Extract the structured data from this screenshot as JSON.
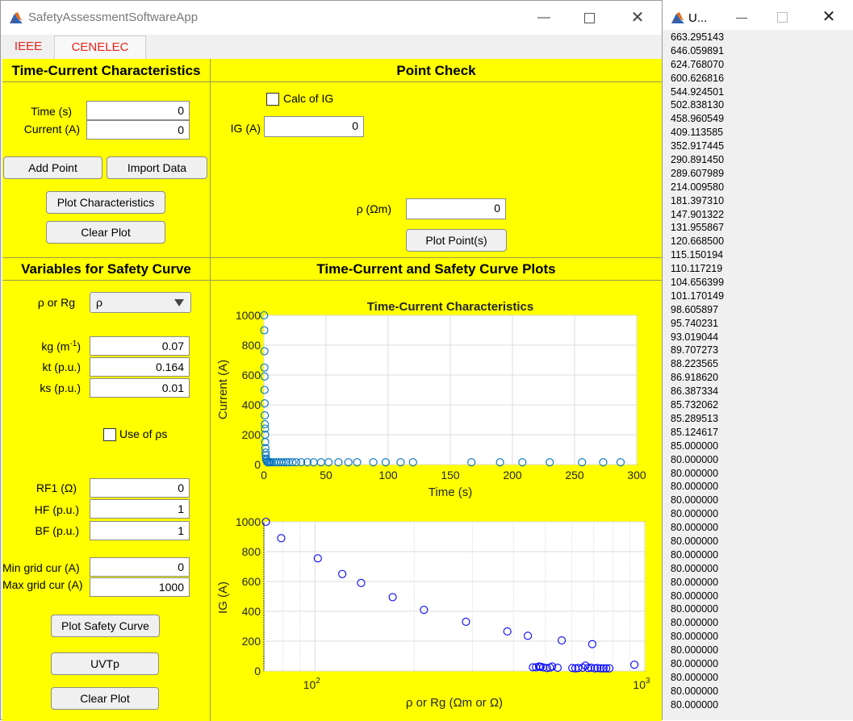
{
  "window": {
    "title": "SafetyAssessmentSoftwareApp"
  },
  "tabs": [
    {
      "label": "IEEE"
    },
    {
      "label": "CENELEC"
    }
  ],
  "time_current": {
    "title": "Time-Current Characteristics",
    "time_label": "Time (s)",
    "time_value": "0",
    "current_label": "Current (A)",
    "current_value": "0",
    "add_point": "Add Point",
    "import_data": "Import Data",
    "plot_characteristics": "Plot Characteristics",
    "clear_plot": "Clear Plot"
  },
  "point_check": {
    "title": "Point Check",
    "calc_ig_label": "Calc of IG",
    "ig_label": "IG (A)",
    "ig_value": "0",
    "rho_label": "ρ (Ωm)",
    "rho_value": "0",
    "plot_points": "Plot Point(s)"
  },
  "safety_vars": {
    "title": "Variables for Safety Curve",
    "rho_rg_label": "ρ or Rg",
    "rho_rg_selected": "ρ",
    "kg_label": "kg (m",
    "kg_sup": "-1",
    "kg_close": ")",
    "kg_value": "0.07",
    "kt_label": "kt (p.u.)",
    "kt_value": "0.164",
    "ks_label": "ks (p.u.)",
    "ks_value": "0.01",
    "use_rhos_label": "Use of ρs",
    "rf1_label": "RF1 (Ω)",
    "rf1_value": "0",
    "hf_label": "HF (p.u.)",
    "hf_value": "1",
    "bf_label": "BF (p.u.)",
    "bf_value": "1",
    "min_grid_label": "Min grid cur (A)",
    "min_grid_value": "0",
    "max_grid_label": "Max grid cur (A)",
    "max_grid_value": "1000",
    "plot_safety_curve": "Plot Safety Curve",
    "uvtp": "UVTp",
    "clear_plot": "Clear Plot"
  },
  "plots_panel": {
    "title": "Time-Current and Safety Curve Plots"
  },
  "chart_data": [
    {
      "type": "scatter",
      "title": "Time-Current Characteristics",
      "xlabel": "Time (s)",
      "ylabel": "Current (A)",
      "xlim": [
        0,
        300
      ],
      "ylim": [
        0,
        1000
      ],
      "xticks": [
        "0",
        "50",
        "100",
        "150",
        "200",
        "250",
        "300"
      ],
      "yticks": [
        "0",
        "200",
        "400",
        "600",
        "800",
        "1000"
      ],
      "grid": true,
      "marker_color": "#0072bd",
      "points": [
        [
          0.2,
          1000
        ],
        [
          0.3,
          900
        ],
        [
          0.4,
          760
        ],
        [
          0.4,
          650
        ],
        [
          0.5,
          590
        ],
        [
          0.5,
          500
        ],
        [
          0.6,
          410
        ],
        [
          0.7,
          330
        ],
        [
          0.8,
          270
        ],
        [
          0.9,
          240
        ],
        [
          1,
          200
        ],
        [
          1,
          150
        ],
        [
          1.2,
          110
        ],
        [
          1.4,
          80
        ],
        [
          1.5,
          60
        ],
        [
          1.7,
          40
        ],
        [
          2,
          30
        ],
        [
          2.5,
          20
        ],
        [
          3,
          15
        ],
        [
          4,
          15
        ],
        [
          5,
          15
        ],
        [
          6,
          15
        ],
        [
          8,
          15
        ],
        [
          10,
          15
        ],
        [
          12,
          15
        ],
        [
          14,
          15
        ],
        [
          16,
          15
        ],
        [
          18,
          15
        ],
        [
          20,
          15
        ],
        [
          23,
          15
        ],
        [
          26,
          15
        ],
        [
          30,
          15
        ],
        [
          35,
          15
        ],
        [
          40,
          15
        ],
        [
          46,
          15
        ],
        [
          52,
          15
        ],
        [
          60,
          15
        ],
        [
          68,
          15
        ],
        [
          75,
          15
        ],
        [
          88,
          15
        ],
        [
          98,
          15
        ],
        [
          110,
          15
        ],
        [
          120,
          15
        ],
        [
          167,
          15
        ],
        [
          190,
          15
        ],
        [
          208,
          15
        ],
        [
          230,
          15
        ],
        [
          256,
          15
        ],
        [
          273,
          15
        ],
        [
          287,
          15
        ]
      ]
    },
    {
      "type": "scatter",
      "title": "",
      "xlabel": "ρ or Rg (Ωm or Ω)",
      "ylabel": "IG (A)",
      "xscale": "log",
      "xlim": [
        70,
        1000
      ],
      "ylim": [
        0,
        1000
      ],
      "xticks": [
        "10^2",
        "10^3"
      ],
      "yticks": [
        "0",
        "200",
        "400",
        "600",
        "800",
        "1000"
      ],
      "grid": true,
      "marker_color": "#0000ff",
      "points": [
        [
          71,
          1000
        ],
        [
          79,
          890
        ],
        [
          102,
          755
        ],
        [
          121,
          650
        ],
        [
          138,
          590
        ],
        [
          172,
          495
        ],
        [
          214,
          410
        ],
        [
          287,
          330
        ],
        [
          383,
          265
        ],
        [
          442,
          236
        ],
        [
          458,
          25
        ],
        [
          468,
          25
        ],
        [
          478,
          30
        ],
        [
          483,
          28
        ],
        [
          492,
          24
        ],
        [
          505,
          20
        ],
        [
          516,
          23
        ],
        [
          524,
          30
        ],
        [
          544,
          22
        ],
        [
          560,
          205
        ],
        [
          603,
          20
        ],
        [
          616,
          18
        ],
        [
          628,
          20
        ],
        [
          648,
          22
        ],
        [
          661,
          36
        ],
        [
          673,
          20
        ],
        [
          687,
          22
        ],
        [
          693,
          180
        ],
        [
          705,
          18
        ],
        [
          718,
          20
        ],
        [
          735,
          18
        ],
        [
          750,
          18
        ],
        [
          764,
          18
        ],
        [
          781,
          18
        ],
        [
          930,
          42
        ]
      ]
    }
  ],
  "uvt_window": {
    "title": "U...",
    "values": [
      "663.295143",
      "646.059891",
      "624.768070",
      "600.626816",
      "544.924501",
      "502.838130",
      "458.960549",
      "409.113585",
      "352.917445",
      "290.891450",
      "289.607989",
      "214.009580",
      "181.397310",
      "147.901322",
      "131.955867",
      "120.668500",
      "115.150194",
      "110.117219",
      "104.656399",
      "101.170149",
      "98.605897",
      "95.740231",
      "93.019044",
      "89.707273",
      "88.223565",
      "86.918620",
      "86.387334",
      "85.732062",
      "85.289513",
      "85.124617",
      "85.000000",
      "80.000000",
      "80.000000",
      "80.000000",
      "80.000000",
      "80.000000",
      "80.000000",
      "80.000000",
      "80.000000",
      "80.000000",
      "80.000000",
      "80.000000",
      "80.000000",
      "80.000000",
      "80.000000",
      "80.000000",
      "80.000000",
      "80.000000",
      "80.000000",
      "80.000000"
    ]
  },
  "colors": {
    "panel_bg": "#ffff00",
    "tab_text": "#e8231a",
    "marker_blue": "#0000ff",
    "marker_default": "#0072bd"
  }
}
